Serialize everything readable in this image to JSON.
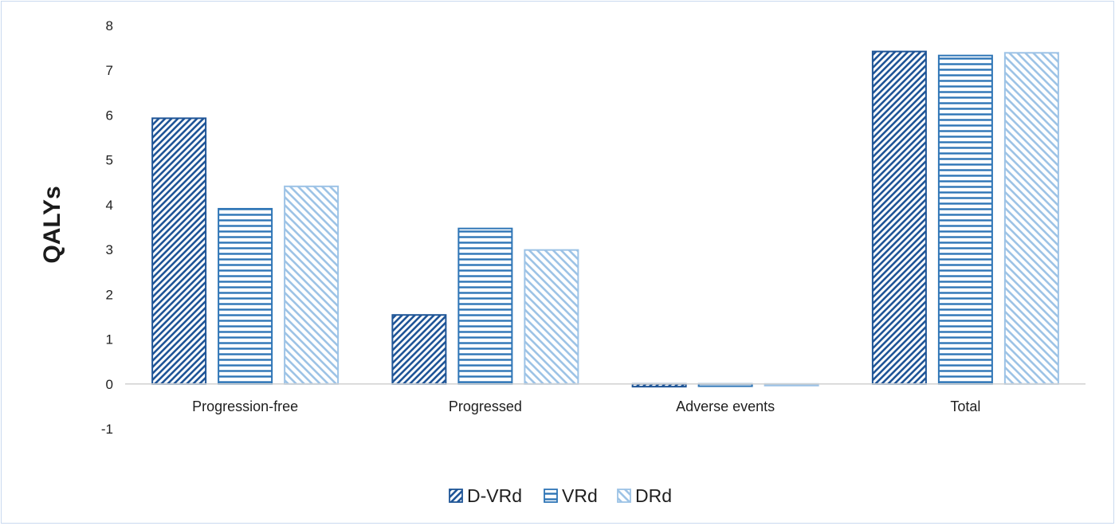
{
  "chart_data": {
    "type": "bar",
    "title": "",
    "xlabel": "",
    "ylabel": "QALYs",
    "ylim": [
      -1,
      8
    ],
    "yticks": [
      -1,
      0,
      1,
      2,
      3,
      4,
      5,
      6,
      7,
      8
    ],
    "grid": false,
    "legend_position": "bottom",
    "categories": [
      "Progression-free",
      "Progressed",
      "Adverse events",
      "Total"
    ],
    "series": [
      {
        "name": "D-VRd",
        "values": [
          5.93,
          1.54,
          -0.06,
          7.42
        ],
        "color": "#1f5597",
        "pattern": "diagonal-up-dense"
      },
      {
        "name": "VRd",
        "values": [
          3.91,
          3.47,
          -0.05,
          7.33
        ],
        "color": "#2e75b6",
        "pattern": "horizontal-lines"
      },
      {
        "name": "DRd",
        "values": [
          4.41,
          2.99,
          -0.03,
          7.39
        ],
        "color": "#9dc3e6",
        "pattern": "diagonal-down-wide"
      }
    ]
  }
}
